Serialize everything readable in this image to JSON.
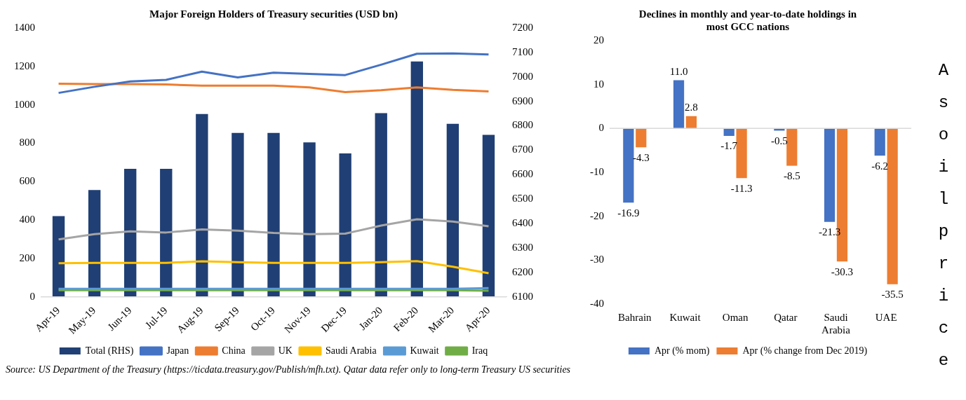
{
  "chart_data": [
    {
      "type": "bar",
      "title": "Major Foreign Holders of Treasury securities (USD bn)",
      "categories": [
        "Apr-19",
        "May-19",
        "Jun-19",
        "Jul-19",
        "Aug-19",
        "Sep-19",
        "Oct-19",
        "Nov-19",
        "Dec-19",
        "Jan-20",
        "Feb-20",
        "Mar-20",
        "Apr-20"
      ],
      "series": [
        {
          "name": "Total (RHS)",
          "type": "bar",
          "axis": "y2",
          "color": "#203f74",
          "values": [
            6430,
            6537,
            6624,
            6624,
            6848,
            6771,
            6771,
            6732,
            6687,
            6852,
            7063,
            6808,
            6763
          ]
        },
        {
          "name": "Japan",
          "type": "line",
          "color": "#4472c4",
          "values": [
            1062,
            1094,
            1122,
            1130,
            1173,
            1143,
            1167,
            1161,
            1155,
            1209,
            1266,
            1268,
            1262
          ]
        },
        {
          "name": "China",
          "type": "line",
          "color": "#ed7d31",
          "values": [
            1110,
            1108,
            1108,
            1106,
            1100,
            1100,
            1100,
            1091,
            1066,
            1076,
            1091,
            1078,
            1070
          ]
        },
        {
          "name": "UK",
          "type": "line",
          "color": "#a5a5a5",
          "values": [
            299,
            326,
            341,
            335,
            351,
            345,
            333,
            326,
            329,
            371,
            404,
            392,
            367
          ]
        },
        {
          "name": "Saudi Arabia",
          "type": "line",
          "color": "#ffc000",
          "values": [
            175,
            177,
            177,
            177,
            185,
            180,
            177,
            177,
            177,
            180,
            186,
            157,
            123
          ]
        },
        {
          "name": "Kuwait",
          "type": "line",
          "color": "#5b9bd5",
          "values": [
            42,
            42,
            42,
            42,
            42,
            42,
            42,
            42,
            42,
            42,
            42,
            42,
            45
          ]
        },
        {
          "name": "Iraq",
          "type": "line",
          "color": "#70ad47",
          "values": [
            34,
            34,
            34,
            34,
            34,
            34,
            34,
            34,
            34,
            34,
            34,
            34,
            32
          ]
        }
      ],
      "ylim": [
        0,
        1400
      ],
      "yticks": [
        0,
        200,
        400,
        600,
        800,
        1000,
        1200,
        1400
      ],
      "y2lim": [
        6100,
        7200
      ],
      "y2ticks": [
        6100,
        6200,
        6300,
        6400,
        6500,
        6600,
        6700,
        6800,
        6900,
        7000,
        7100,
        7200
      ],
      "legend": "bottom",
      "annotations": [
        "Source: US Department of the Treasury (https://ticdata.treasury.gov/Publish/mfh.txt). Qatar data refer only to long-term Treasury US securities"
      ]
    },
    {
      "type": "bar",
      "title": "Declines in monthly and year-to-date holdings in\nmost GCC nations",
      "categories": [
        "Bahrain",
        "Kuwait",
        "Oman",
        "Qatar",
        "Saudi Arabia",
        "UAE"
      ],
      "series": [
        {
          "name": "Apr (% mom)",
          "color": "#4472c4",
          "values": [
            -16.9,
            11.0,
            -1.7,
            -0.5,
            -21.3,
            -6.2
          ],
          "value_labels": [
            "-16.9",
            "11.0",
            "-1.7",
            "-0.5",
            "-21.3",
            "-6.2"
          ]
        },
        {
          "name": "Apr (% change from Dec 2019)",
          "color": "#ed7d31",
          "values": [
            -4.3,
            2.8,
            -11.3,
            -8.5,
            -30.3,
            -35.5
          ],
          "value_labels": [
            "-4.3",
            "2.8",
            "-11.3",
            "-8.5",
            "-30.3",
            "-35.5"
          ]
        }
      ],
      "ylim": [
        -40,
        20
      ],
      "yticks": [
        -40,
        -30,
        -20,
        -10,
        0,
        10,
        20
      ],
      "legend": "bottom"
    },
    {
      "type": "other",
      "annotations": [
        "Asoilprice"
      ]
    }
  ]
}
